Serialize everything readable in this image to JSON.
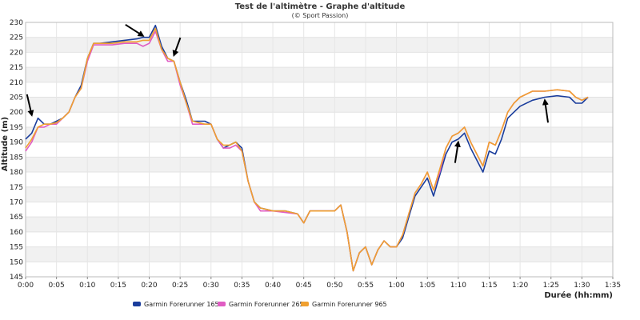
{
  "chart_data": {
    "type": "line",
    "title": "Test de l'altimètre - Graphe d'altitude",
    "subtitle": "(© Sport Passion)",
    "xlabel": "Durée (hh:mm)",
    "ylabel": "Altitude (m)",
    "xlim": [
      "0:00",
      "1:35"
    ],
    "ylim": [
      145,
      230
    ],
    "x_ticks": [
      "0:00",
      "0:05",
      "0:10",
      "0:15",
      "0:20",
      "0:25",
      "0:30",
      "0:35",
      "0:40",
      "0:45",
      "0:50",
      "0:55",
      "1:00",
      "1:05",
      "1:10",
      "1:15",
      "1:20",
      "1:25",
      "1:30",
      "1:35"
    ],
    "y_ticks": [
      145,
      150,
      155,
      160,
      165,
      170,
      175,
      180,
      185,
      190,
      195,
      200,
      205,
      210,
      215,
      220,
      225,
      230
    ],
    "grid": "horizontal bands",
    "legend_position": "bottom",
    "series": [
      {
        "name": "Garmin Forerunner 165",
        "color": "#1a3d9c",
        "x": [
          "0:00",
          "0:01",
          "0:02",
          "0:03",
          "0:04",
          "0:05",
          "0:06",
          "0:07",
          "0:08",
          "0:09",
          "0:10",
          "0:11",
          "0:12",
          "0:14",
          "0:16",
          "0:18",
          "0:19",
          "0:20",
          "0:21",
          "0:22",
          "0:23",
          "0:24",
          "0:25",
          "0:26",
          "0:27",
          "0:28",
          "0:29",
          "0:30",
          "0:31",
          "0:32",
          "0:33",
          "0:34",
          "0:35",
          "0:36",
          "0:37",
          "0:38",
          "0:39",
          "0:40",
          "0:42",
          "0:44",
          "0:45",
          "0:46",
          "0:48",
          "0:50",
          "0:51",
          "0:52",
          "0:53",
          "0:54",
          "0:55",
          "0:56",
          "0:57",
          "0:58",
          "0:59",
          "1:00",
          "1:01",
          "1:02",
          "1:03",
          "1:04",
          "1:05",
          "1:06",
          "1:07",
          "1:08",
          "1:09",
          "1:10",
          "1:11",
          "1:12",
          "1:13",
          "1:14",
          "1:15",
          "1:16",
          "1:17",
          "1:18",
          "1:19",
          "1:20",
          "1:22",
          "1:24",
          "1:26",
          "1:28",
          "1:29",
          "1:30",
          "1:31"
        ],
        "values": [
          191,
          193,
          198,
          196,
          196,
          197,
          198,
          200,
          205,
          209,
          218,
          223,
          223,
          223.5,
          224,
          224.5,
          225,
          225,
          229,
          222,
          218,
          217,
          210,
          204,
          197,
          197,
          197,
          196,
          191,
          188,
          189,
          190,
          188,
          177,
          170,
          168,
          167.5,
          167,
          167,
          166,
          163,
          167,
          167,
          167,
          169,
          160,
          147,
          153,
          155,
          149,
          154,
          157,
          155,
          155,
          158,
          165,
          172,
          175,
          178,
          172,
          179,
          186,
          190,
          191,
          193,
          188,
          184,
          180,
          187,
          186,
          191,
          198,
          200,
          202,
          204,
          205,
          205.5,
          205,
          203,
          203,
          205
        ]
      },
      {
        "name": "Garmin Forerunner 265",
        "color": "#e05cc3",
        "x": [
          "0:00",
          "0:01",
          "0:02",
          "0:03",
          "0:04",
          "0:05",
          "0:06",
          "0:07",
          "0:08",
          "0:09",
          "0:10",
          "0:11",
          "0:12",
          "0:14",
          "0:16",
          "0:18",
          "0:19",
          "0:20",
          "0:21",
          "0:22",
          "0:23",
          "0:24",
          "0:25",
          "0:26",
          "0:27",
          "0:28",
          "0:29",
          "0:30",
          "0:31",
          "0:32",
          "0:33",
          "0:34",
          "0:35",
          "0:36",
          "0:37",
          "0:38",
          "0:39",
          "0:40",
          "0:42",
          "0:44",
          "0:45",
          "0:46",
          "0:48",
          "0:50",
          "0:51",
          "0:52",
          "0:53",
          "0:54",
          "0:55",
          "0:56",
          "0:57",
          "0:58",
          "0:59",
          "1:00",
          "1:01",
          "1:02",
          "1:03",
          "1:04",
          "1:05",
          "1:06",
          "1:07",
          "1:08",
          "1:09",
          "1:10",
          "1:11",
          "1:12",
          "1:13",
          "1:14",
          "1:15",
          "1:16",
          "1:17",
          "1:18",
          "1:19",
          "1:20",
          "1:22",
          "1:24",
          "1:26",
          "1:28",
          "1:29",
          "1:30",
          "1:31"
        ],
        "values": [
          187,
          190,
          195,
          195,
          196,
          196,
          198,
          200,
          205,
          208,
          217,
          222.5,
          222.5,
          222.5,
          223,
          223,
          222,
          223,
          227,
          221,
          217,
          217,
          209,
          203,
          196,
          196,
          196,
          196,
          191,
          188,
          188,
          189,
          187,
          177,
          170,
          167,
          167,
          167,
          166.5,
          166,
          163,
          167,
          167,
          167,
          169,
          160,
          147,
          153,
          155,
          149,
          154,
          157,
          155,
          155,
          159,
          166,
          173,
          176,
          180,
          174,
          180,
          188,
          192,
          193,
          195,
          190,
          186,
          182,
          190,
          189,
          194,
          200,
          203,
          205,
          207,
          207,
          207.5,
          207,
          205,
          204,
          205
        ]
      },
      {
        "name": "Garmin Forerunner 965",
        "color": "#f0a030",
        "x": [
          "0:00",
          "0:01",
          "0:02",
          "0:03",
          "0:04",
          "0:05",
          "0:06",
          "0:07",
          "0:08",
          "0:09",
          "0:10",
          "0:11",
          "0:12",
          "0:14",
          "0:16",
          "0:18",
          "0:19",
          "0:20",
          "0:21",
          "0:22",
          "0:23",
          "0:24",
          "0:25",
          "0:26",
          "0:27",
          "0:28",
          "0:29",
          "0:30",
          "0:31",
          "0:32",
          "0:33",
          "0:34",
          "0:35",
          "0:36",
          "0:37",
          "0:38",
          "0:39",
          "0:40",
          "0:42",
          "0:44",
          "0:45",
          "0:46",
          "0:48",
          "0:50",
          "0:51",
          "0:52",
          "0:53",
          "0:54",
          "0:55",
          "0:56",
          "0:57",
          "0:58",
          "0:59",
          "1:00",
          "1:01",
          "1:02",
          "1:03",
          "1:04",
          "1:05",
          "1:06",
          "1:07",
          "1:08",
          "1:09",
          "1:10",
          "1:11",
          "1:12",
          "1:13",
          "1:14",
          "1:15",
          "1:16",
          "1:17",
          "1:18",
          "1:19",
          "1:20",
          "1:22",
          "1:24",
          "1:26",
          "1:28",
          "1:29",
          "1:30",
          "1:31"
        ],
        "values": [
          188,
          191,
          195,
          196,
          196,
          196.5,
          198,
          200,
          205,
          208,
          218,
          223,
          223,
          223,
          223.5,
          223.5,
          224,
          224,
          228,
          221,
          218,
          217,
          210,
          203,
          197,
          196.5,
          196,
          196,
          191,
          189,
          189,
          190,
          187,
          177,
          170,
          168,
          167.5,
          167,
          167,
          166,
          163,
          167,
          167,
          167,
          169,
          160,
          147,
          153,
          155,
          149,
          154,
          157,
          155,
          155,
          159,
          166,
          173,
          176,
          180,
          174,
          181,
          188,
          192,
          193,
          195,
          190,
          186,
          182,
          190,
          189,
          194,
          200,
          203,
          205,
          207,
          207,
          207.5,
          207,
          205,
          204,
          205
        ]
      }
    ],
    "annotations": [
      {
        "type": "arrow",
        "x": "0:01",
        "y": 199
      },
      {
        "type": "arrow",
        "x": "0:19",
        "y": 225.5
      },
      {
        "type": "arrow",
        "x": "0:24",
        "y": 219
      },
      {
        "type": "arrow",
        "x": "1:10",
        "y": 190
      },
      {
        "type": "arrow",
        "x": "1:24",
        "y": 204
      }
    ]
  }
}
